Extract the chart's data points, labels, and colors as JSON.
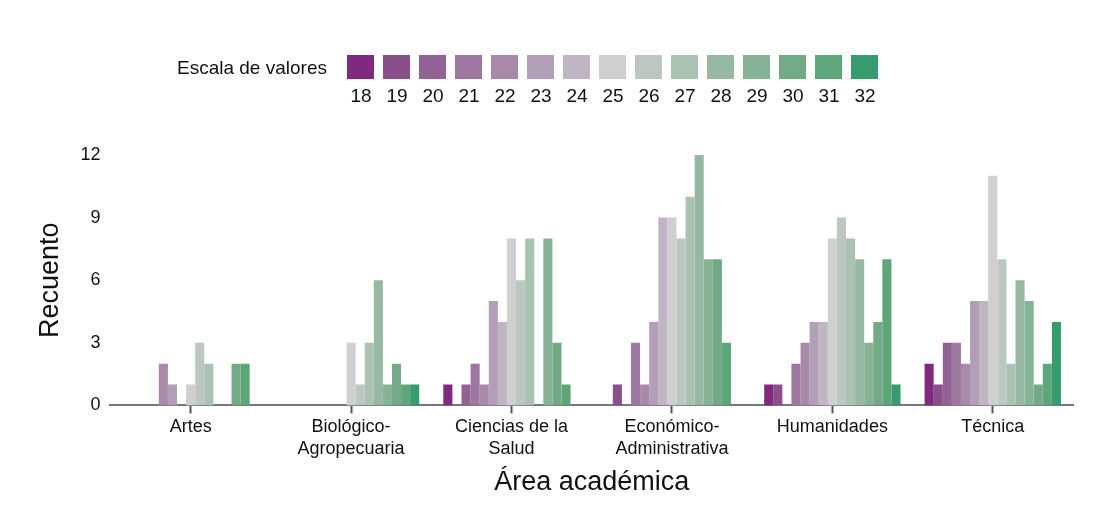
{
  "chart_data": {
    "type": "bar",
    "xlabel": "Área académica",
    "ylabel": "Recuento",
    "legend_title": "Escala de valores",
    "legend": "top",
    "grid": false,
    "categories": [
      "Artes",
      "Biológico-Agropecuaria",
      "Ciencias de la Salud",
      "Económico-Administrativa",
      "Humanidades",
      "Técnica"
    ],
    "ylim": [
      0,
      12
    ],
    "yticks": [
      0,
      3,
      6,
      9,
      12
    ],
    "series": [
      {
        "name": "18",
        "color": "#7f2a7e",
        "values": [
          0,
          0,
          1,
          0,
          1,
          2
        ]
      },
      {
        "name": "19",
        "color": "#884f8a",
        "values": [
          0,
          0,
          0,
          1,
          1,
          1
        ]
      },
      {
        "name": "20",
        "color": "#916293",
        "values": [
          0,
          0,
          1,
          0,
          0,
          3
        ]
      },
      {
        "name": "21",
        "color": "#9d77a0",
        "values": [
          0,
          0,
          2,
          3,
          2,
          3
        ]
      },
      {
        "name": "22",
        "color": "#a889a8",
        "values": [
          2,
          0,
          1,
          1,
          3,
          2
        ]
      },
      {
        "name": "23",
        "color": "#b29eb6",
        "values": [
          1,
          0,
          5,
          4,
          4,
          5
        ]
      },
      {
        "name": "24",
        "color": "#c0b5c4",
        "values": [
          0,
          0,
          4,
          9,
          4,
          5
        ]
      },
      {
        "name": "25",
        "color": "#cfcfcf",
        "values": [
          1,
          3,
          8,
          9,
          8,
          11
        ]
      },
      {
        "name": "26",
        "color": "#bcc8bf",
        "values": [
          3,
          1,
          6,
          8,
          9,
          7
        ]
      },
      {
        "name": "27",
        "color": "#a9c2b1",
        "values": [
          2,
          3,
          8,
          10,
          8,
          2
        ]
      },
      {
        "name": "28",
        "color": "#97b9a3",
        "values": [
          0,
          6,
          0,
          12,
          7,
          6
        ]
      },
      {
        "name": "29",
        "color": "#86b395",
        "values": [
          0,
          1,
          8,
          7,
          3,
          5
        ]
      },
      {
        "name": "30",
        "color": "#72aa86",
        "values": [
          2,
          2,
          3,
          7,
          4,
          1
        ]
      },
      {
        "name": "31",
        "color": "#5da67a",
        "values": [
          2,
          1,
          1,
          3,
          7,
          2
        ]
      },
      {
        "name": "32",
        "color": "#369b6d",
        "values": [
          0,
          1,
          0,
          0,
          1,
          4
        ]
      }
    ]
  }
}
